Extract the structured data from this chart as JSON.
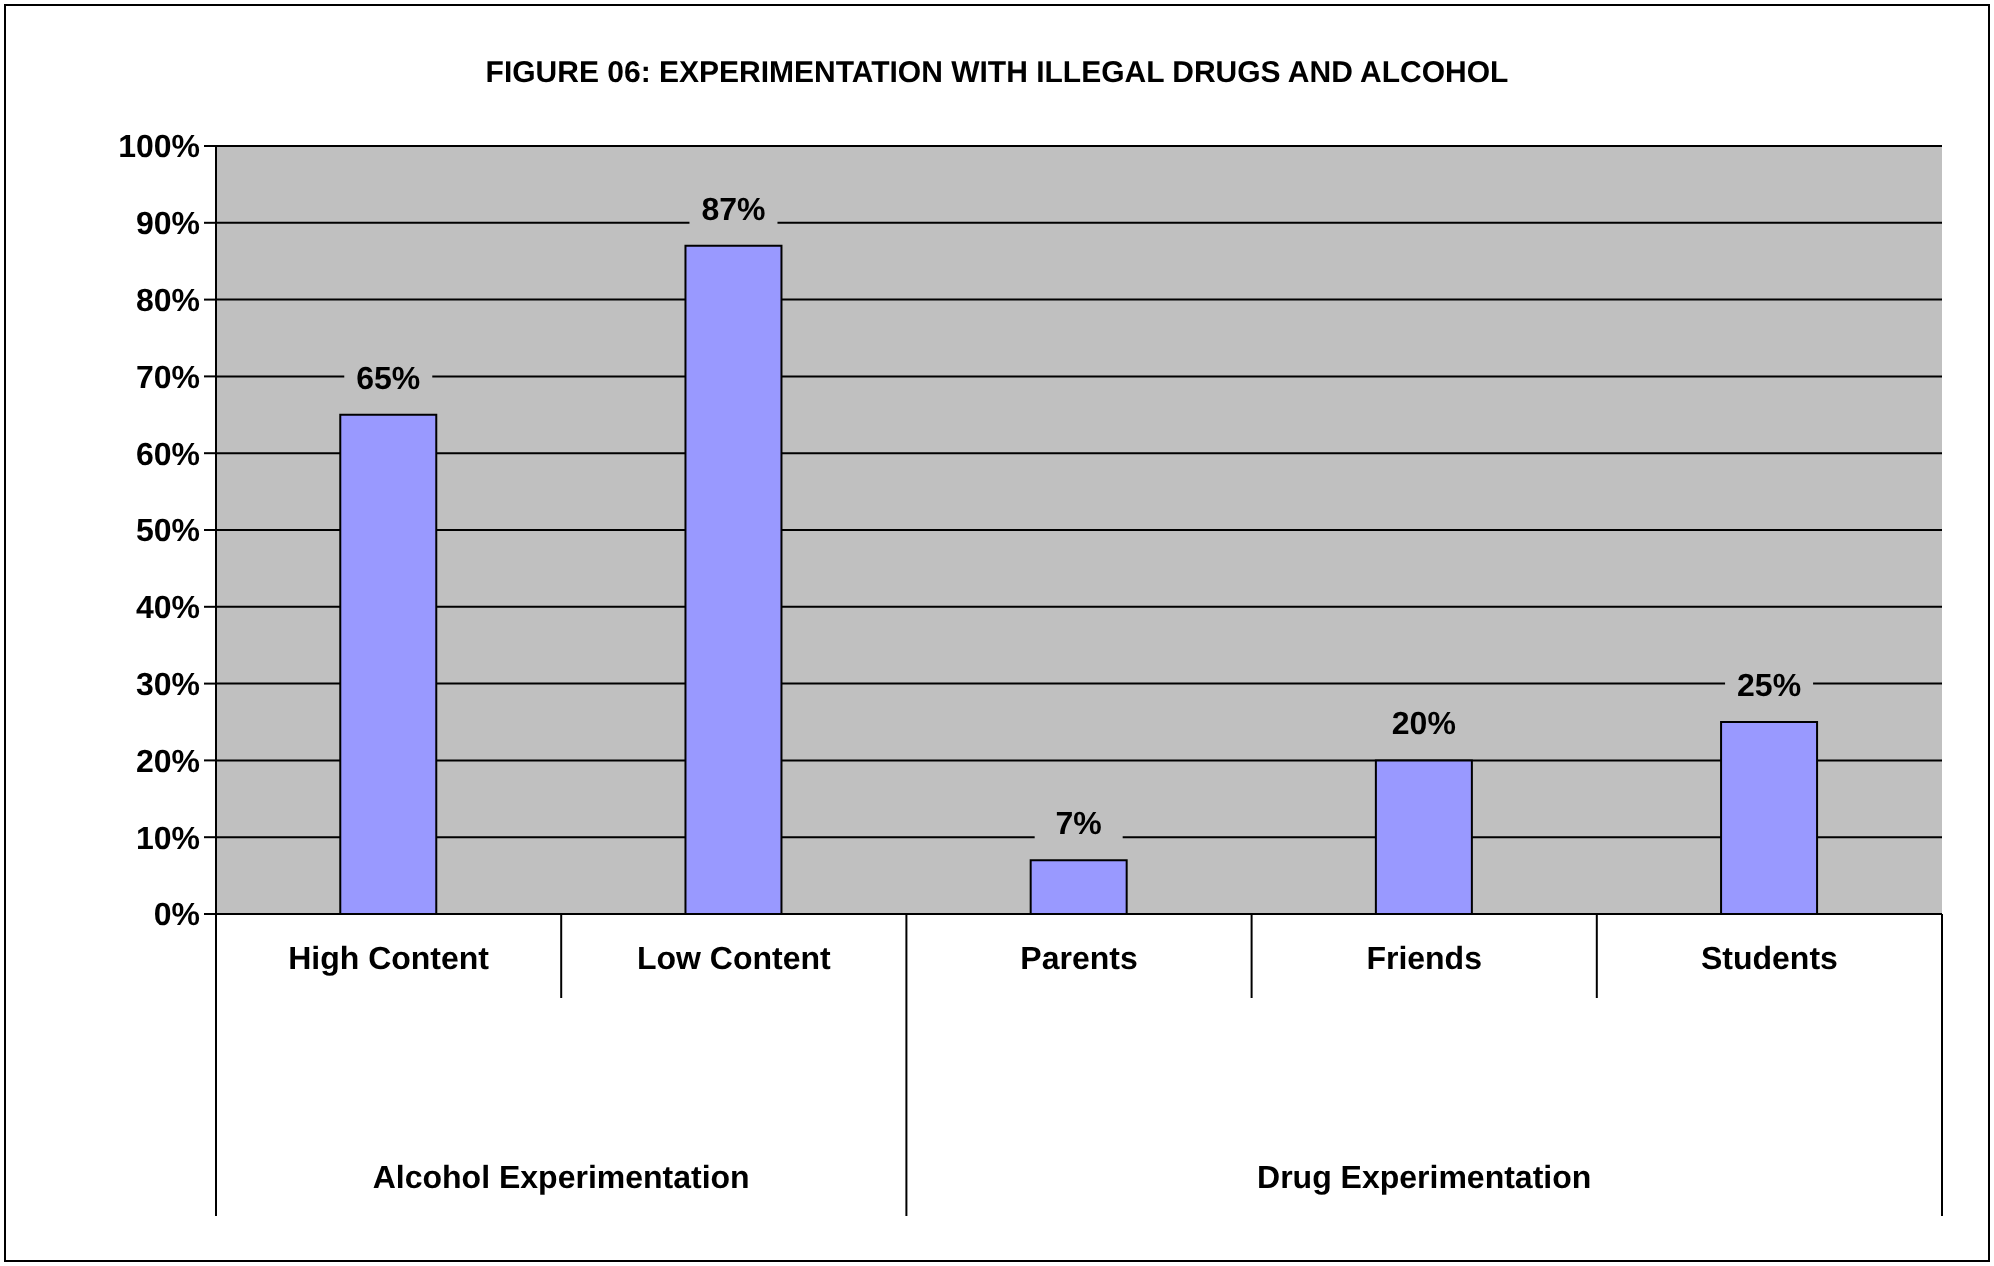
{
  "chart_data": {
    "type": "bar",
    "title": "FIGURE 06: EXPERIMENTATION WITH ILLEGAL DRUGS AND ALCOHOL",
    "categories": [
      "High Content",
      "Low Content",
      "Parents",
      "Friends",
      "Students"
    ],
    "values": [
      65,
      87,
      7,
      20,
      25
    ],
    "value_labels": [
      "65%",
      "87%",
      "7%",
      "20%",
      "25%"
    ],
    "color": "#9999ff",
    "ylim": [
      0,
      100
    ],
    "yticks": [
      {
        "value": 0,
        "label": "0%"
      },
      {
        "value": 10,
        "label": "10%"
      },
      {
        "value": 20,
        "label": "20%"
      },
      {
        "value": 30,
        "label": "30%"
      },
      {
        "value": 40,
        "label": "40%"
      },
      {
        "value": 50,
        "label": "50%"
      },
      {
        "value": 60,
        "label": "60%"
      },
      {
        "value": 70,
        "label": "70%"
      },
      {
        "value": 80,
        "label": "80%"
      },
      {
        "value": 90,
        "label": "90%"
      },
      {
        "value": 100,
        "label": "100%"
      }
    ],
    "grid": "y",
    "annotations": [
      "Alcohol Experimentation",
      "Drug Experimentation"
    ]
  }
}
